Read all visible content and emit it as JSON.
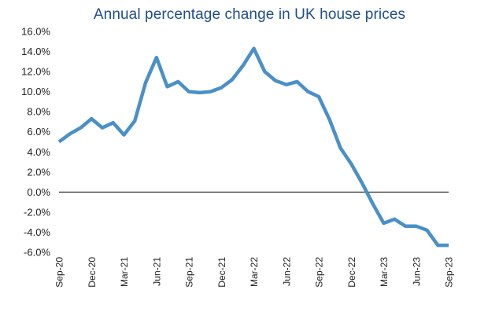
{
  "chart_data": {
    "type": "line",
    "title": "Annual percentage change in UK house prices",
    "xlabel": "",
    "ylabel": "",
    "ylim": [
      -6.0,
      16.0
    ],
    "y_ticks": [
      "16.0%",
      "14.0%",
      "12.0%",
      "10.0%",
      "8.0%",
      "6.0%",
      "4.0%",
      "2.0%",
      "0.0%",
      "-2.0%",
      "-4.0%",
      "-6.0%"
    ],
    "x_tick_labels": [
      "Sep-20",
      "Dec-20",
      "Mar-21",
      "Jun-21",
      "Sep-21",
      "Dec-21",
      "Mar-22",
      "Jun-22",
      "Sep-22",
      "Dec-22",
      "Mar-23",
      "Jun-23",
      "Sep-23"
    ],
    "grid": false,
    "legend": "none",
    "line_color": "#4a90c8",
    "zero_line_color": "#000000",
    "x": [
      "Sep-20",
      "Oct-20",
      "Nov-20",
      "Dec-20",
      "Jan-21",
      "Feb-21",
      "Mar-21",
      "Apr-21",
      "May-21",
      "Jun-21",
      "Jul-21",
      "Aug-21",
      "Sep-21",
      "Oct-21",
      "Nov-21",
      "Dec-21",
      "Jan-22",
      "Feb-22",
      "Mar-22",
      "Apr-22",
      "May-22",
      "Jun-22",
      "Jul-22",
      "Aug-22",
      "Sep-22",
      "Oct-22",
      "Nov-22",
      "Dec-22",
      "Jan-23",
      "Feb-23",
      "Mar-23",
      "Apr-23",
      "May-23",
      "Jun-23",
      "Jul-23",
      "Aug-23",
      "Sep-23"
    ],
    "series": [
      {
        "values": [
          5.0,
          5.8,
          6.4,
          7.3,
          6.4,
          6.9,
          5.7,
          7.1,
          10.9,
          13.4,
          10.5,
          11.0,
          10.0,
          9.9,
          10.0,
          10.4,
          11.2,
          12.6,
          14.3,
          12.0,
          11.1,
          10.7,
          11.0,
          10.0,
          9.5,
          7.2,
          4.4,
          2.8,
          0.9,
          -1.2,
          -3.1,
          -2.7,
          -3.4,
          -3.4,
          -3.8,
          -5.3,
          -5.3
        ]
      }
    ]
  }
}
